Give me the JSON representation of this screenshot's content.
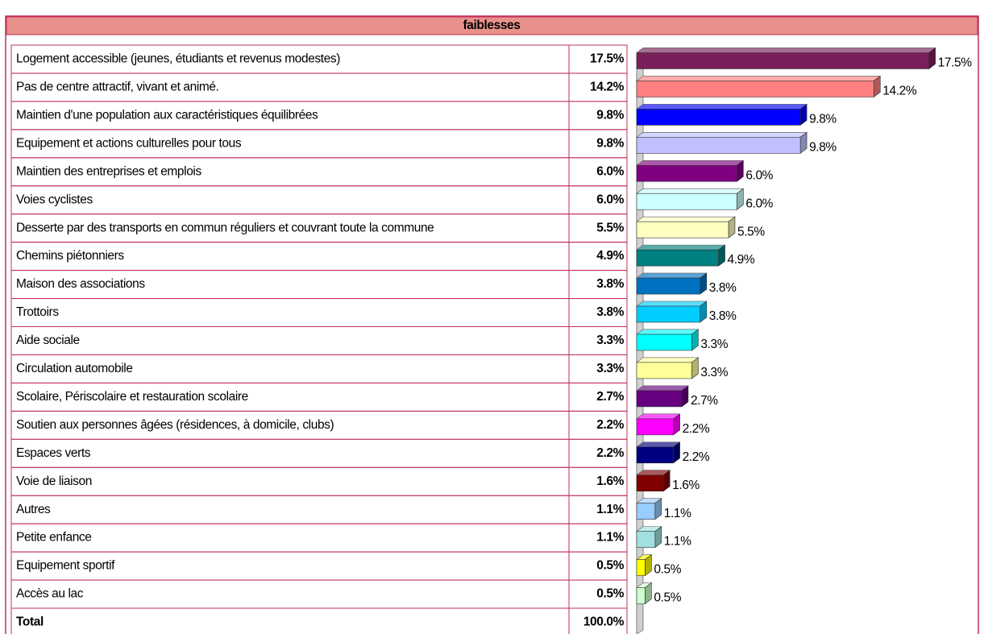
{
  "chart_data": {
    "type": "bar3d",
    "header": "faiblesses",
    "categories": [
      "Logement accessible (jeunes, étudiants et revenus modestes)",
      "Pas de  centre attractif, vivant et animé.",
      "Maintien d'une population aux caractéristiques équilibrées",
      "Equipement et actions culturelles pour tous",
      "Maintien des entreprises et emplois",
      "Voies cyclistes",
      "Desserte par des transports en commun réguliers et couvrant toute la commune",
      "Chemins piétonniers",
      "Maison des associations",
      "Trottoirs",
      "Aide sociale",
      "Circulation automobile",
      "Scolaire, Périscolaire et restauration scolaire",
      "Soutien aux personnes âgées (résidences, à domicile, clubs)",
      "Espaces verts",
      "Voie de liaison",
      "Autres",
      "Petite enfance",
      "Equipement sportif",
      "Accès au lac"
    ],
    "values": [
      17.5,
      14.2,
      9.8,
      9.8,
      6.0,
      6.0,
      5.5,
      4.9,
      3.8,
      3.8,
      3.3,
      3.3,
      2.7,
      2.2,
      2.2,
      1.6,
      1.1,
      1.1,
      0.5,
      0.5
    ],
    "value_labels": [
      "17.5%",
      "14.2%",
      "9.8%",
      "9.8%",
      "6.0%",
      "6.0%",
      "5.5%",
      "4.9%",
      "3.8%",
      "3.8%",
      "3.3%",
      "3.3%",
      "2.7%",
      "2.2%",
      "2.2%",
      "1.6%",
      "1.1%",
      "1.1%",
      "0.5%",
      "0.5%"
    ],
    "colors": [
      "#7b1f5a",
      "#ff8080",
      "#0000ff",
      "#c0c0ff",
      "#800080",
      "#ccffff",
      "#ffffc0",
      "#008080",
      "#0070c0",
      "#00ccff",
      "#00ffff",
      "#ffff99",
      "#660080",
      "#ff00ff",
      "#000080",
      "#800000",
      "#99ccff",
      "#a0e0e0",
      "#ffff00",
      "#ccffcc"
    ],
    "total": "Total",
    "total_value": "100.0%",
    "xlim": [
      0,
      18
    ]
  }
}
